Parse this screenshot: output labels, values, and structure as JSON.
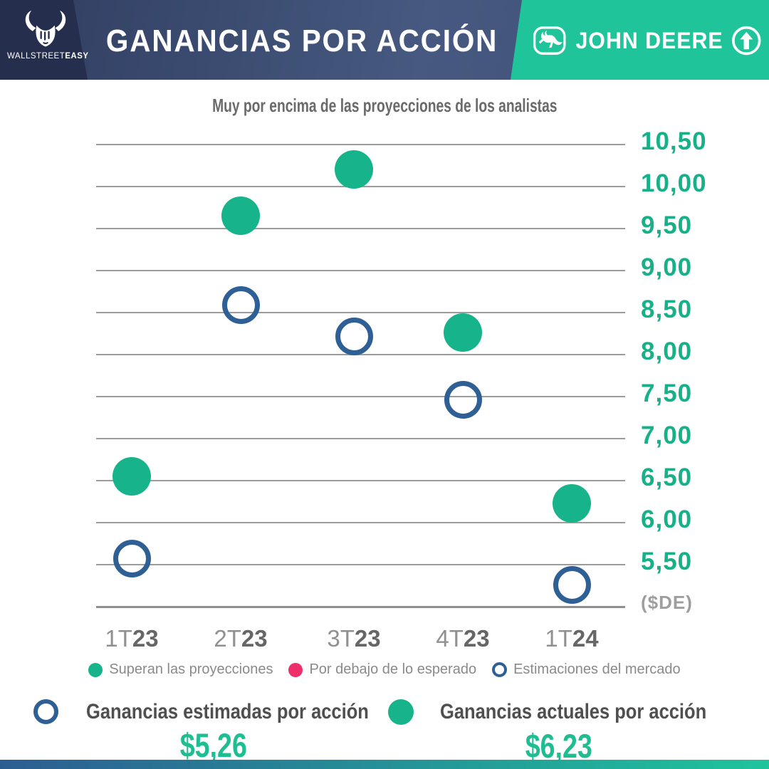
{
  "header": {
    "brand": {
      "light": "WALLSTREET",
      "bold": "EASY"
    },
    "title": "GANANCIAS POR ACCIÓN",
    "partner": {
      "name": "JOHN DEERE"
    }
  },
  "chart_data": {
    "type": "scatter",
    "title": "Muy por encima de las proyecciones de los analistas",
    "categories": [
      "1T23",
      "2T23",
      "3T23",
      "4T23",
      "1T24"
    ],
    "series": [
      {
        "name": "Estimaciones del mercado",
        "style": "ring",
        "color": "#2e6095",
        "values": [
          5.57,
          8.59,
          8.22,
          7.46,
          5.26
        ]
      },
      {
        "name": "Ganancias actuales por acción",
        "style": "dot",
        "color": "#17b38a",
        "values": [
          6.55,
          9.65,
          10.2,
          8.26,
          6.23
        ]
      }
    ],
    "ylim": [
      5.0,
      10.5
    ],
    "yticks": [
      10.5,
      10.0,
      9.5,
      9.0,
      8.5,
      8.0,
      7.5,
      7.0,
      6.5,
      6.0,
      5.5
    ],
    "ytick_labels": [
      "10,50",
      "10,00",
      "9,50",
      "9,00",
      "8,50",
      "8,00",
      "7,50",
      "7,00",
      "6,50",
      "6,00",
      "5,50"
    ],
    "unit_label": "($DE)",
    "grid": true,
    "legend_position": "bottom"
  },
  "legend": {
    "items": [
      {
        "label": "Superan las proyecciones",
        "swatch": "dot",
        "color": "#17b38a"
      },
      {
        "label": "Por debajo de lo esperado",
        "swatch": "dot",
        "color": "#ef2f6a"
      },
      {
        "label": "Estimaciones del mercado",
        "swatch": "ring",
        "color": "#2e6095"
      }
    ]
  },
  "summary": {
    "estimated": {
      "label": "Ganancias estimadas por acción",
      "value": "$5,26",
      "swatch": "ring",
      "color": "#2e6095"
    },
    "actual": {
      "label": "Ganancias actuales por acción",
      "value": "$6,23",
      "swatch": "dot",
      "color": "#17b38a"
    }
  },
  "palette": {
    "navy": "#262e4e",
    "band_blue": "#475980",
    "green": "#1fc49b",
    "point_green": "#17b38a",
    "point_blue": "#2e6095",
    "pink": "#ef2f6a",
    "grid_gray": "#9c9c9c"
  }
}
